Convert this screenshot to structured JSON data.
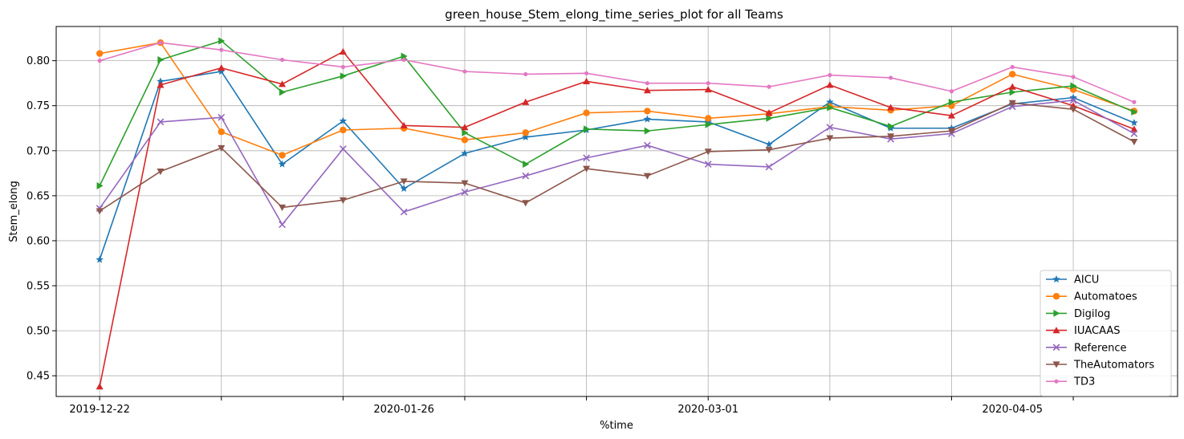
{
  "chart_data": {
    "type": "line",
    "title": "green_house_Stem_elong_time_series_plot for all Teams",
    "xlabel": "%time",
    "ylabel": "Stem_elong",
    "x": [
      "2019-12-22",
      "2019-12-29",
      "2020-01-05",
      "2020-01-12",
      "2020-01-19",
      "2020-01-26",
      "2020-02-02",
      "2020-02-09",
      "2020-02-16",
      "2020-02-23",
      "2020-03-01",
      "2020-03-08",
      "2020-03-15",
      "2020-03-22",
      "2020-03-29",
      "2020-04-05",
      "2020-04-12",
      "2020-04-19"
    ],
    "x_tick_labels": [
      "2019-12-22",
      "2020-01-26",
      "2020-03-01",
      "2020-04-05"
    ],
    "x_range": [
      "2019-12-17",
      "2020-04-24"
    ],
    "ylim": [
      0.427,
      0.838
    ],
    "y_ticks": [
      0.45,
      0.5,
      0.55,
      0.6,
      0.65,
      0.7,
      0.75,
      0.8
    ],
    "y_tick_labels": [
      "0.45",
      "0.50",
      "0.55",
      "0.60",
      "0.65",
      "0.70",
      "0.75",
      "0.80"
    ],
    "grid": true,
    "legend_position": "bottom-right",
    "series": [
      {
        "name": "AICU",
        "color": "#1f77b4",
        "marker": "star",
        "values": [
          0.579,
          0.777,
          0.788,
          0.685,
          0.733,
          0.658,
          0.697,
          0.715,
          0.723,
          0.735,
          0.732,
          0.707,
          0.754,
          0.725,
          0.725,
          0.752,
          0.759,
          0.731
        ]
      },
      {
        "name": "Automatoes",
        "color": "#ff7f0e",
        "marker": "circle",
        "values": [
          0.808,
          0.82,
          0.721,
          0.695,
          0.723,
          0.725,
          0.712,
          0.72,
          0.742,
          0.744,
          0.736,
          0.741,
          0.749,
          0.745,
          0.75,
          0.785,
          0.768,
          0.744
        ]
      },
      {
        "name": "Digilog",
        "color": "#2ca02c",
        "marker": "triangle-right",
        "values": [
          0.661,
          0.801,
          0.822,
          0.765,
          0.783,
          0.805,
          0.72,
          0.685,
          0.724,
          0.722,
          0.729,
          0.736,
          0.748,
          0.727,
          0.754,
          0.765,
          0.772,
          0.743
        ]
      },
      {
        "name": "IUACAAS",
        "color": "#d62728",
        "marker": "triangle-up",
        "values": [
          0.438,
          0.773,
          0.792,
          0.774,
          0.81,
          0.728,
          0.726,
          0.754,
          0.777,
          0.767,
          0.768,
          0.742,
          0.773,
          0.748,
          0.739,
          0.771,
          0.75,
          0.724
        ]
      },
      {
        "name": "Reference",
        "color": "#9467bd",
        "marker": "x",
        "values": [
          0.636,
          0.732,
          0.737,
          0.618,
          0.702,
          0.632,
          0.654,
          0.672,
          0.692,
          0.706,
          0.685,
          0.682,
          0.726,
          0.713,
          0.719,
          0.749,
          0.756,
          0.719
        ]
      },
      {
        "name": "TheAutomators",
        "color": "#8c564b",
        "marker": "triangle-down",
        "values": [
          0.633,
          0.677,
          0.703,
          0.637,
          0.645,
          0.666,
          0.664,
          0.642,
          0.68,
          0.672,
          0.699,
          0.701,
          0.714,
          0.716,
          0.722,
          0.753,
          0.746,
          0.71
        ]
      },
      {
        "name": "TD3",
        "color": "#e377c2",
        "marker": "point",
        "values": [
          0.8,
          0.82,
          0.812,
          0.801,
          0.793,
          0.801,
          0.788,
          0.785,
          0.786,
          0.775,
          0.775,
          0.771,
          0.784,
          0.781,
          0.766,
          0.793,
          0.782,
          0.754
        ]
      }
    ]
  }
}
